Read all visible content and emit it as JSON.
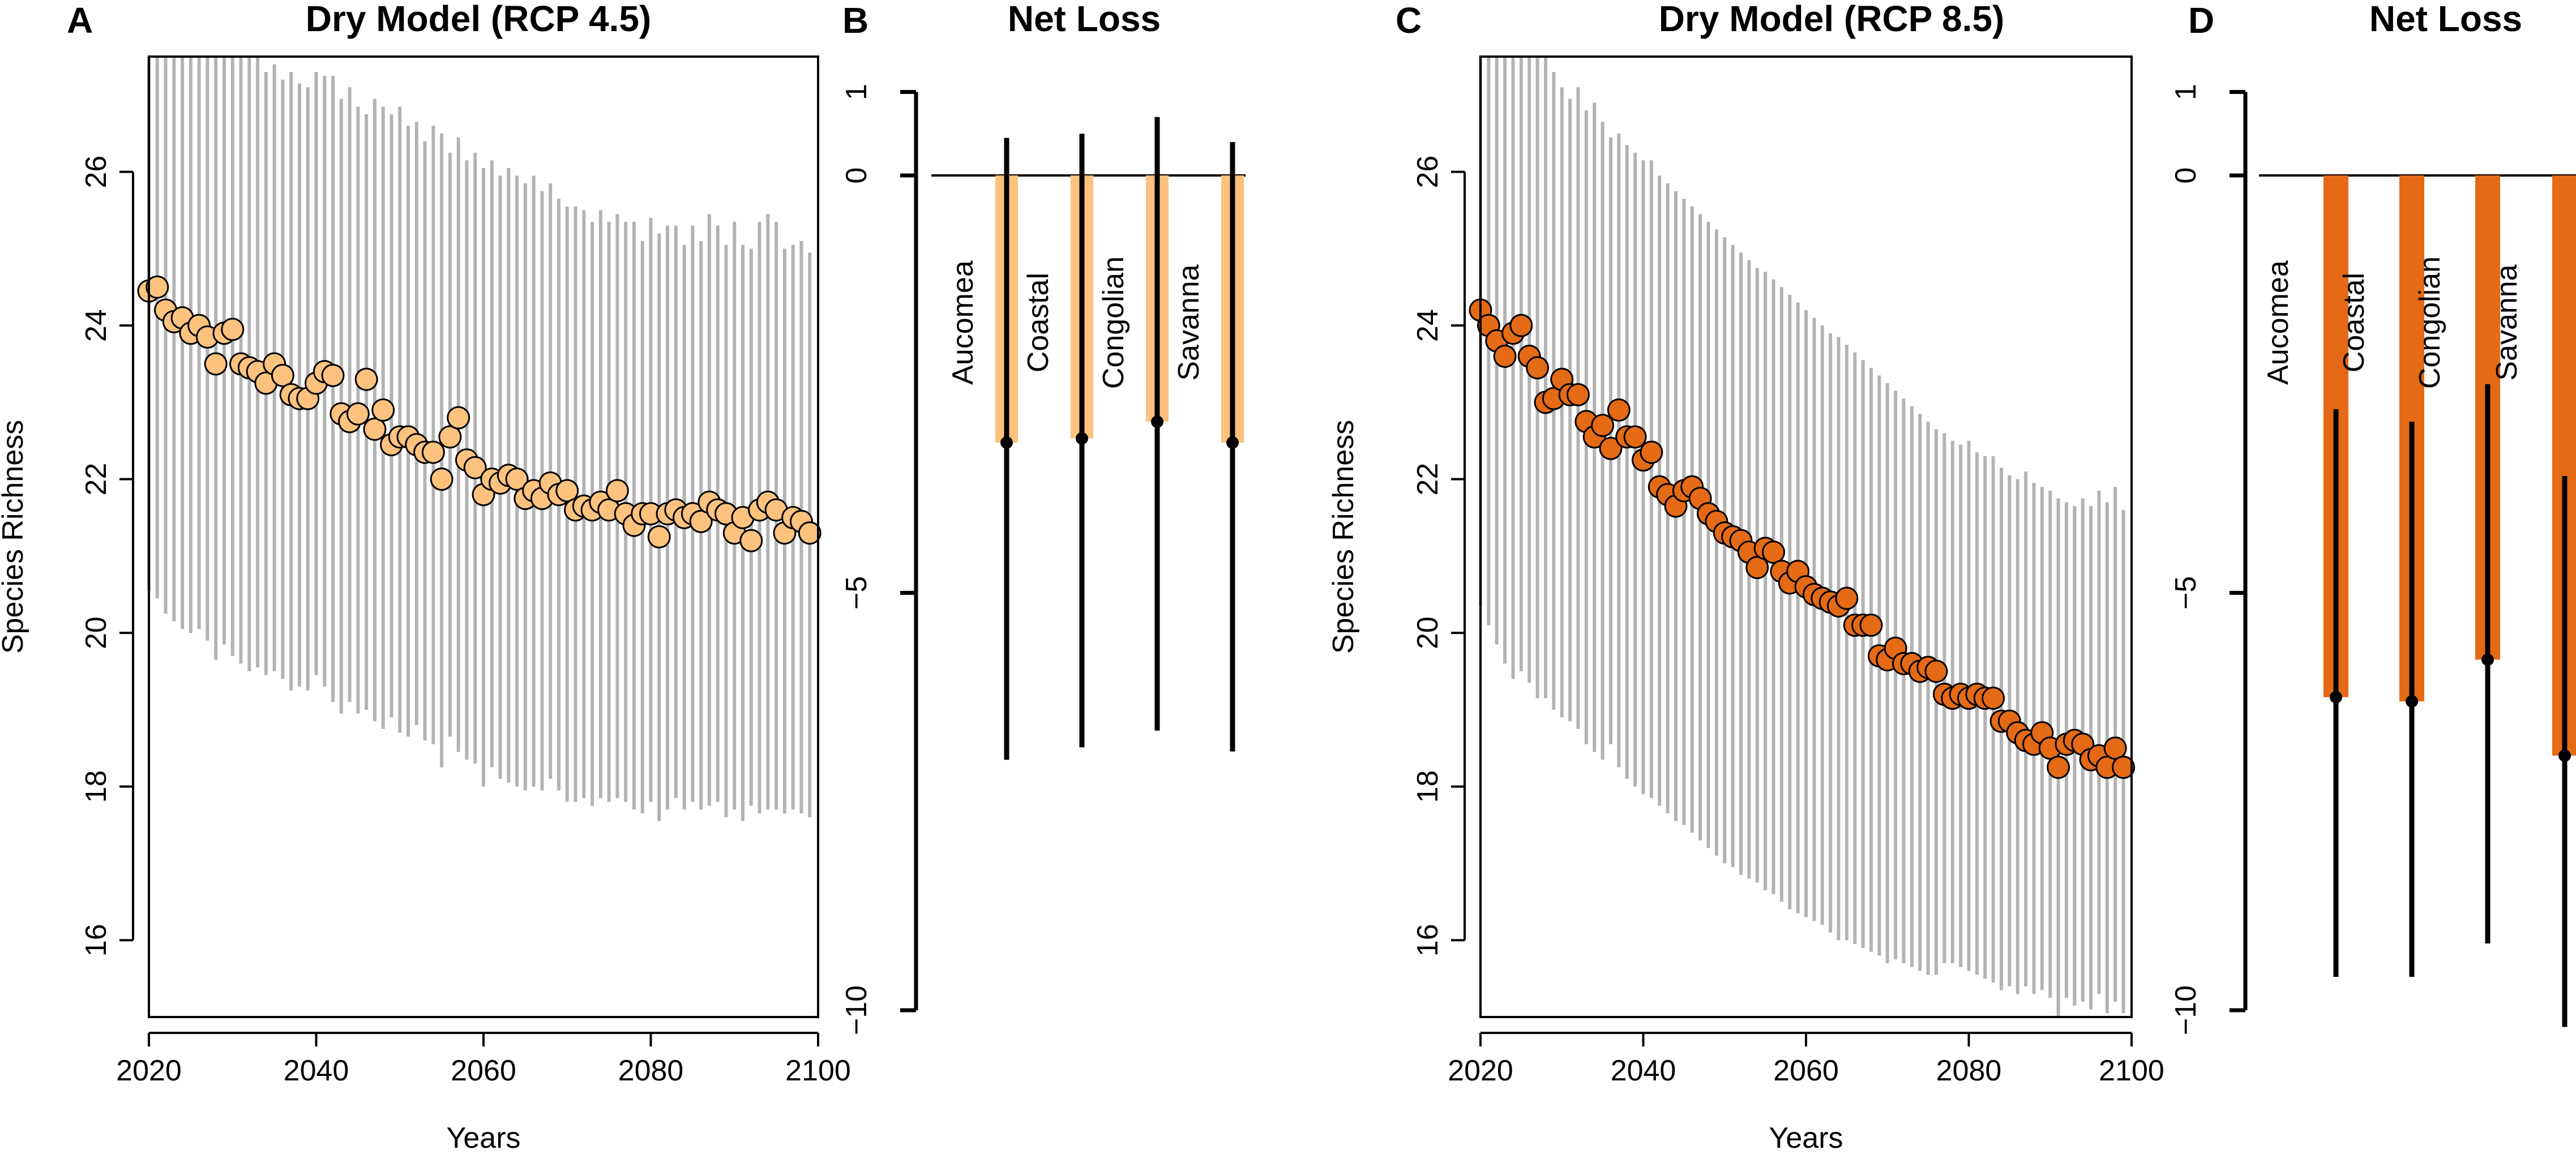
{
  "colors": {
    "rcp45_fill": "#fcc27e",
    "rcp85_fill": "#e46a15",
    "range_gray": "#b3b3b3",
    "outline": "#000000"
  },
  "panels": {
    "a": {
      "letter": "A",
      "title": "Dry Model (RCP 4.5)"
    },
    "b": {
      "letter": "B",
      "title": "Net Loss"
    },
    "c": {
      "letter": "C",
      "title": "Dry Model (RCP 8.5)"
    },
    "d": {
      "letter": "D",
      "title": "Net Loss"
    }
  },
  "chart_data": [
    {
      "id": "A",
      "type": "scatter",
      "title": "Dry Model (RCP 4.5)",
      "xlabel": "Years",
      "ylabel": "Species Richness",
      "xlim": [
        2020,
        2100
      ],
      "ylim": [
        15,
        27.5
      ],
      "xticks": [
        "2020",
        "2040",
        "2060",
        "2080",
        "2100"
      ],
      "yticks": [
        "16",
        "18",
        "20",
        "22",
        "24",
        "26"
      ],
      "x": [
        2020,
        2021,
        2022,
        2023,
        2024,
        2025,
        2026,
        2027,
        2028,
        2029,
        2030,
        2031,
        2032,
        2033,
        2034,
        2035,
        2036,
        2037,
        2038,
        2039,
        2040,
        2041,
        2042,
        2043,
        2044,
        2045,
        2046,
        2047,
        2048,
        2049,
        2050,
        2051,
        2052,
        2053,
        2054,
        2055,
        2056,
        2057,
        2058,
        2059,
        2060,
        2061,
        2062,
        2063,
        2064,
        2065,
        2066,
        2067,
        2068,
        2069,
        2070,
        2071,
        2072,
        2073,
        2074,
        2075,
        2076,
        2077,
        2078,
        2079,
        2080,
        2081,
        2082,
        2083,
        2084,
        2085,
        2086,
        2087,
        2088,
        2089,
        2090,
        2091,
        2092,
        2093,
        2094,
        2095,
        2096,
        2097,
        2098,
        2099
      ],
      "mean": [
        24.45,
        24.5,
        24.2,
        24.05,
        24.1,
        23.9,
        24.0,
        23.85,
        23.5,
        23.9,
        23.95,
        23.5,
        23.45,
        23.4,
        23.25,
        23.5,
        23.35,
        23.1,
        23.05,
        23.05,
        23.25,
        23.4,
        23.35,
        22.85,
        22.75,
        22.85,
        23.3,
        22.65,
        22.9,
        22.45,
        22.55,
        22.55,
        22.45,
        22.35,
        22.35,
        22.0,
        22.55,
        22.8,
        22.25,
        22.15,
        21.8,
        22.0,
        21.95,
        22.05,
        22.0,
        21.75,
        21.85,
        21.75,
        21.95,
        21.8,
        21.85,
        21.6,
        21.65,
        21.6,
        21.7,
        21.6,
        21.85,
        21.55,
        21.4,
        21.55,
        21.55,
        21.25,
        21.55,
        21.6,
        21.5,
        21.55,
        21.45,
        21.7,
        21.6,
        21.55,
        21.3,
        21.5,
        21.2,
        21.6,
        21.7,
        21.6,
        21.3,
        21.5,
        21.45,
        21.3
      ],
      "upper": [
        27.5,
        27.5,
        27.5,
        27.5,
        27.5,
        27.5,
        27.5,
        27.5,
        27.5,
        27.5,
        27.5,
        27.5,
        27.5,
        27.5,
        27.3,
        27.4,
        27.2,
        27.3,
        27.15,
        27.1,
        27.3,
        27.25,
        27.25,
        26.95,
        27.1,
        26.85,
        26.75,
        26.95,
        26.85,
        26.75,
        26.85,
        26.6,
        26.65,
        26.4,
        26.6,
        26.5,
        26.25,
        26.45,
        26.15,
        26.25,
        26.05,
        26.15,
        25.95,
        26.05,
        25.95,
        25.85,
        25.95,
        25.75,
        25.85,
        25.65,
        25.55,
        25.55,
        25.5,
        25.35,
        25.5,
        25.35,
        25.45,
        25.35,
        25.35,
        25.1,
        25.4,
        25.2,
        25.3,
        25.3,
        25.05,
        25.3,
        25.1,
        25.45,
        25.3,
        25.05,
        25.35,
        25.05,
        25.0,
        25.35,
        25.45,
        25.35,
        25.0,
        25.05,
        25.1,
        24.95
      ],
      "lower": [
        20.55,
        20.45,
        20.25,
        20.15,
        20.05,
        20.0,
        20.05,
        19.9,
        19.65,
        19.85,
        19.7,
        19.6,
        19.5,
        19.55,
        19.45,
        19.5,
        19.4,
        19.25,
        19.3,
        19.25,
        19.45,
        19.3,
        19.1,
        18.95,
        19.1,
        18.95,
        19.0,
        18.85,
        18.75,
        18.9,
        18.7,
        18.65,
        18.8,
        18.6,
        18.55,
        18.25,
        18.65,
        18.45,
        18.35,
        18.3,
        18.0,
        18.25,
        18.1,
        18.05,
        18.0,
        17.95,
        18.0,
        17.95,
        18.1,
        17.95,
        17.8,
        17.8,
        17.85,
        17.75,
        17.85,
        17.8,
        17.85,
        17.8,
        17.7,
        17.65,
        17.8,
        17.55,
        17.7,
        17.85,
        17.7,
        17.8,
        17.7,
        17.75,
        17.8,
        17.6,
        17.7,
        17.55,
        17.75,
        17.65,
        17.7,
        17.7,
        17.65,
        17.7,
        17.65,
        17.6
      ]
    },
    {
      "id": "B",
      "type": "bar",
      "title": "Net Loss",
      "categories": [
        "Aucomea",
        "Coastal",
        "Congolian",
        "Savanna"
      ],
      "values": [
        -3.2,
        -3.15,
        -2.95,
        -3.2
      ],
      "err_upper": [
        0.45,
        0.5,
        0.7,
        0.4
      ],
      "err_lower": [
        -7.0,
        -6.85,
        -6.65,
        -6.9
      ],
      "ylim": [
        -10,
        1
      ],
      "yticks": [
        "−10",
        "−5",
        "0",
        "1"
      ]
    },
    {
      "id": "C",
      "type": "scatter",
      "title": "Dry Model (RCP 8.5)",
      "xlabel": "Years",
      "ylabel": "Species Richness",
      "xlim": [
        2020,
        2100
      ],
      "ylim": [
        15,
        27.5
      ],
      "xticks": [
        "2020",
        "2040",
        "2060",
        "2080",
        "2100"
      ],
      "yticks": [
        "16",
        "18",
        "20",
        "22",
        "24",
        "26"
      ],
      "x": [
        2020,
        2021,
        2022,
        2023,
        2024,
        2025,
        2026,
        2027,
        2028,
        2029,
        2030,
        2031,
        2032,
        2033,
        2034,
        2035,
        2036,
        2037,
        2038,
        2039,
        2040,
        2041,
        2042,
        2043,
        2044,
        2045,
        2046,
        2047,
        2048,
        2049,
        2050,
        2051,
        2052,
        2053,
        2054,
        2055,
        2056,
        2057,
        2058,
        2059,
        2060,
        2061,
        2062,
        2063,
        2064,
        2065,
        2066,
        2067,
        2068,
        2069,
        2070,
        2071,
        2072,
        2073,
        2074,
        2075,
        2076,
        2077,
        2078,
        2079,
        2080,
        2081,
        2082,
        2083,
        2084,
        2085,
        2086,
        2087,
        2088,
        2089,
        2090,
        2091,
        2092,
        2093,
        2094,
        2095,
        2096,
        2097,
        2098,
        2099
      ],
      "mean": [
        24.2,
        24.0,
        23.8,
        23.6,
        23.9,
        24.0,
        23.6,
        23.45,
        23.0,
        23.05,
        23.3,
        23.1,
        23.1,
        22.75,
        22.55,
        22.7,
        22.4,
        22.9,
        22.55,
        22.55,
        22.25,
        22.35,
        21.9,
        21.8,
        21.65,
        21.85,
        21.9,
        21.75,
        21.55,
        21.45,
        21.3,
        21.25,
        21.2,
        21.05,
        20.85,
        21.1,
        21.05,
        20.8,
        20.65,
        20.8,
        20.6,
        20.5,
        20.45,
        20.4,
        20.35,
        20.45,
        20.1,
        20.1,
        20.1,
        19.7,
        19.65,
        19.8,
        19.6,
        19.6,
        19.5,
        19.55,
        19.5,
        19.2,
        19.15,
        19.2,
        19.15,
        19.2,
        19.15,
        19.15,
        18.85,
        18.85,
        18.7,
        18.6,
        18.55,
        18.7,
        18.5,
        18.25,
        18.55,
        18.6,
        18.55,
        18.35,
        18.4,
        18.25,
        18.5,
        18.25
      ],
      "upper": [
        27.5,
        27.5,
        27.5,
        27.5,
        27.5,
        27.5,
        27.5,
        27.5,
        27.5,
        27.3,
        27.1,
        26.95,
        27.1,
        26.8,
        26.9,
        26.65,
        26.45,
        26.5,
        26.35,
        26.25,
        26.15,
        26.15,
        25.95,
        25.85,
        25.75,
        25.65,
        25.55,
        25.45,
        25.35,
        25.25,
        25.15,
        25.05,
        24.95,
        24.85,
        24.75,
        24.7,
        24.6,
        24.5,
        24.4,
        24.3,
        24.2,
        24.1,
        24.0,
        23.9,
        23.85,
        23.75,
        23.65,
        23.55,
        23.45,
        23.35,
        23.25,
        23.15,
        23.05,
        22.95,
        22.85,
        22.75,
        22.65,
        22.6,
        22.5,
        22.45,
        22.5,
        22.35,
        22.3,
        22.3,
        22.15,
        22.05,
        22.0,
        22.1,
        21.95,
        21.9,
        21.85,
        21.75,
        21.7,
        21.65,
        21.75,
        21.65,
        21.85,
        21.7,
        21.9,
        21.6
      ],
      "lower": [
        20.35,
        20.1,
        19.85,
        19.6,
        19.4,
        19.5,
        19.35,
        19.15,
        19.15,
        19.0,
        18.9,
        18.85,
        18.75,
        18.55,
        18.45,
        18.35,
        18.55,
        18.25,
        18.1,
        18.0,
        17.9,
        17.85,
        17.75,
        17.65,
        17.55,
        17.5,
        17.4,
        17.3,
        17.2,
        17.1,
        17.0,
        16.95,
        16.85,
        16.8,
        16.75,
        16.65,
        16.6,
        16.5,
        16.4,
        16.35,
        16.3,
        16.25,
        16.2,
        16.1,
        16.0,
        16.0,
        15.95,
        15.9,
        15.85,
        15.8,
        15.7,
        15.75,
        15.7,
        15.65,
        15.6,
        15.55,
        15.55,
        15.7,
        15.7,
        15.65,
        15.6,
        15.55,
        15.5,
        15.45,
        15.35,
        15.4,
        15.3,
        15.4,
        15.3,
        15.35,
        15.25,
        15.0,
        15.25,
        15.15,
        15.2,
        15.1,
        15.3,
        15.05,
        15.2,
        15.05
      ]
    },
    {
      "id": "D",
      "type": "bar",
      "title": "Net Loss",
      "categories": [
        "Aucomea",
        "Coastal",
        "Congolian",
        "Savanna"
      ],
      "values": [
        -6.25,
        -6.3,
        -5.8,
        -6.95
      ],
      "err_upper": [
        -2.8,
        -2.95,
        -2.5,
        -3.6
      ],
      "err_lower": [
        -9.6,
        -9.6,
        -9.2,
        -10.2
      ],
      "ylim": [
        -10,
        1
      ],
      "yticks": [
        "−10",
        "−5",
        "0",
        "1"
      ]
    }
  ]
}
